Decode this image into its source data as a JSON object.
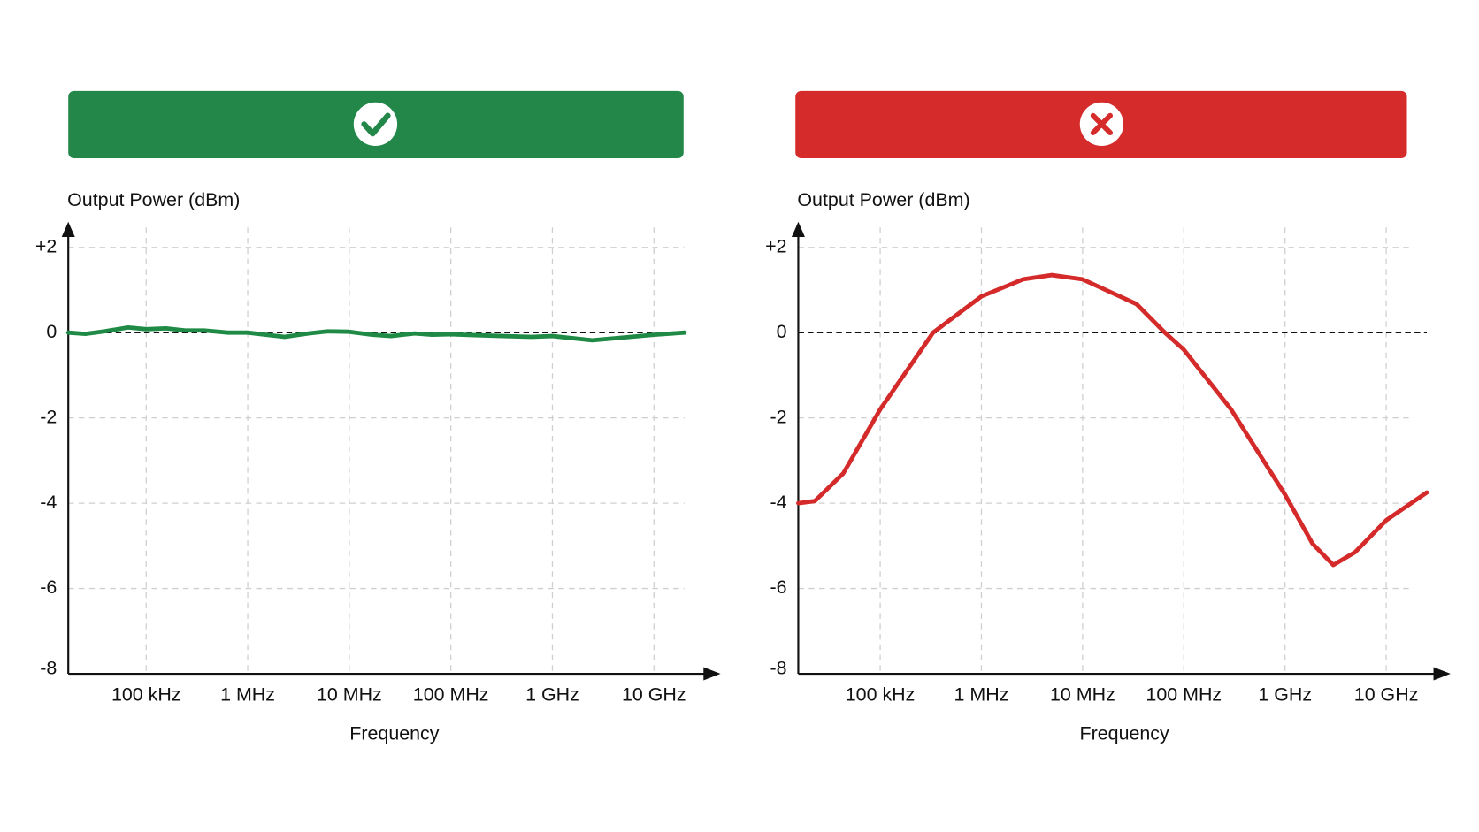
{
  "chart_data": [
    {
      "type": "line",
      "ylabel": "Output Power (dBm)",
      "xlabel": "Frequency",
      "x_scale": "log",
      "grid": true,
      "x": [
        17100,
        25200,
        38800,
        66400,
        100000,
        157000,
        242000,
        371000,
        637000,
        1000000,
        1510000,
        2310000,
        3960000,
        6100000,
        10000000,
        16800000,
        25800000,
        44100000,
        65000000,
        100000000,
        171000000,
        327000000,
        622000000,
        1000000000,
        2470000000,
        4710000000,
        10000000000,
        20000000000
      ],
      "series": [
        {
          "name": null,
          "color": "#1f8a45",
          "values": [
            0,
            -0.03,
            0.03,
            0.12,
            0.08,
            0.1,
            0.05,
            0.05,
            0.0,
            0.0,
            -0.05,
            -0.1,
            -0.02,
            0.03,
            0.02,
            -0.05,
            -0.08,
            -0.02,
            -0.05,
            -0.04,
            -0.06,
            -0.08,
            -0.1,
            -0.08,
            -0.18,
            -0.12,
            -0.05,
            0.0
          ]
        }
      ],
      "xlim": [
        17100,
        20000000000
      ],
      "xticks": [
        {
          "value": 100000,
          "label": "100 kHz"
        },
        {
          "value": 1000000,
          "label": "1 MHz"
        },
        {
          "value": 10000000,
          "label": "10 MHz"
        },
        {
          "value": 100000000,
          "label": "100 MHz"
        },
        {
          "value": 1000000000,
          "label": "1 GHz"
        },
        {
          "value": 10000000000,
          "label": "10 GHz"
        }
      ],
      "ylim": [
        -8,
        2.6
      ],
      "yticks": [
        {
          "value": 2,
          "label": "+2"
        },
        0,
        -2,
        -4,
        -6,
        -8
      ]
    },
    {
      "type": "line",
      "ylabel": "Output Power (dBm)",
      "xlabel": "Frequency",
      "x_scale": "log",
      "grid": true,
      "x": [
        15500,
        22600,
        43200,
        100000,
        333000,
        1000000,
        2580000,
        4920000,
        10000000,
        34100000,
        65000000,
        100000000,
        293000000,
        1000000000,
        1870000000,
        3000000000,
        4920000000,
        10000000000,
        25200000000
      ],
      "series": [
        {
          "name": null,
          "color": "#d42a2a",
          "values": [
            -4.0,
            -3.95,
            -3.3,
            -1.8,
            0,
            0.85,
            1.25,
            1.35,
            1.25,
            0.67,
            0,
            -0.4,
            -1.8,
            -3.8,
            -4.95,
            -5.45,
            -5.15,
            -4.4,
            -3.75
          ]
        }
      ],
      "xlim": [
        15500,
        25200000000
      ],
      "xticks": [
        {
          "value": 100000,
          "label": "100 kHz"
        },
        {
          "value": 1000000,
          "label": "1 MHz"
        },
        {
          "value": 10000000,
          "label": "10 MHz"
        },
        {
          "value": 100000000,
          "label": "100 MHz"
        },
        {
          "value": 1000000000,
          "label": "1 GHz"
        },
        {
          "value": 10000000000,
          "label": "10 GHz"
        }
      ],
      "ylim": [
        -8,
        2.6
      ],
      "yticks": [
        {
          "value": 2,
          "label": "+2"
        },
        0,
        -2,
        -4,
        -6,
        -8
      ]
    }
  ]
}
